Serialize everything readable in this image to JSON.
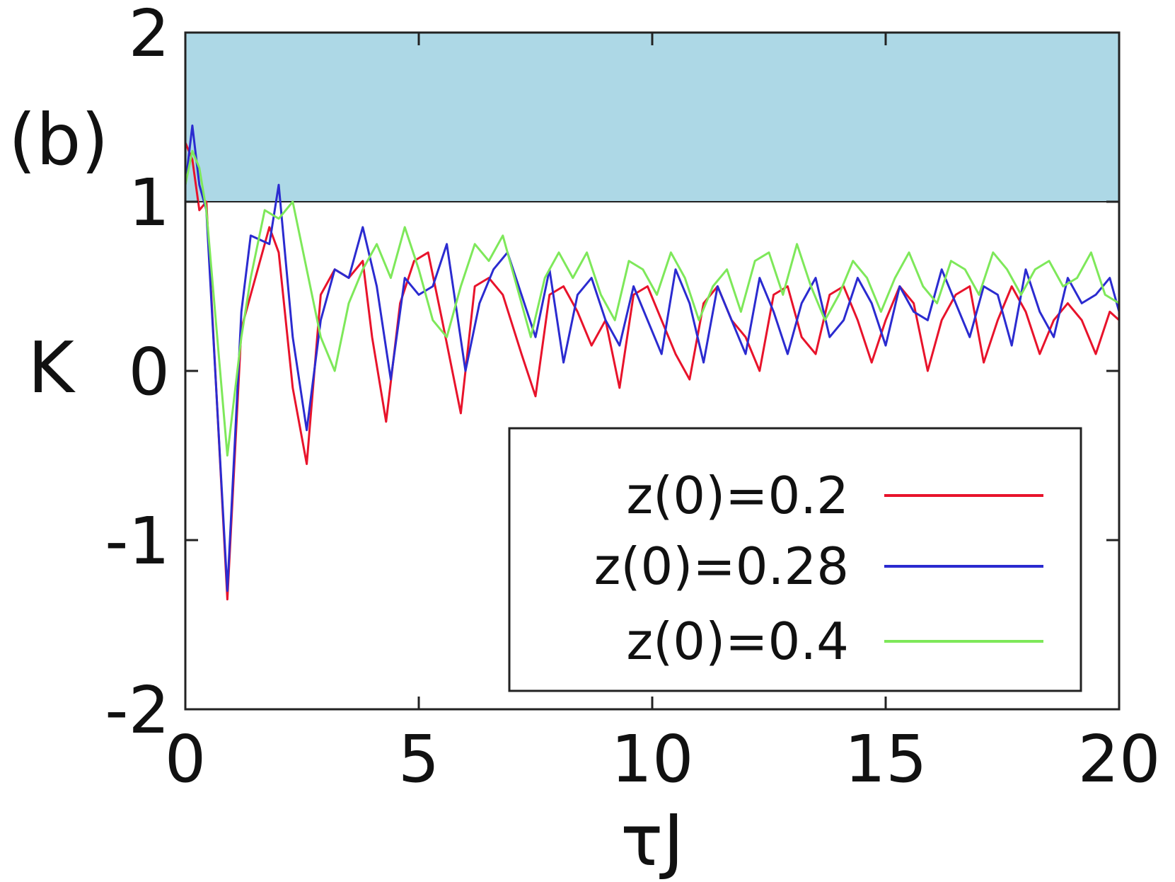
{
  "chart_data": {
    "type": "line",
    "panel_label": "(b)",
    "xlabel": "τJ",
    "ylabel": "K",
    "xlim": [
      0,
      20
    ],
    "ylim": [
      -2,
      2
    ],
    "xticks": [
      0,
      5,
      10,
      15,
      20
    ],
    "yticks": [
      -2,
      -1,
      0,
      1,
      2
    ],
    "xtick_labels": [
      "0",
      "5",
      "10",
      "15",
      "20"
    ],
    "ytick_labels": [
      "-2",
      "-1",
      "0",
      "1",
      "2"
    ],
    "shaded_region": {
      "y_from": 1,
      "y_to": 2,
      "color": "#add8e6"
    },
    "legend_position": "bottom-right",
    "grid": false,
    "series": [
      {
        "name": "z(0)=0.2",
        "color": "#e8132b",
        "x": [
          0,
          0.15,
          0.3,
          0.45,
          0.9,
          1.2,
          1.4,
          1.8,
          2.0,
          2.3,
          2.6,
          2.9,
          3.2,
          3.5,
          3.8,
          4.0,
          4.3,
          4.6,
          4.9,
          5.2,
          5.5,
          5.9,
          6.2,
          6.5,
          6.8,
          7.2,
          7.5,
          7.8,
          8.1,
          8.4,
          8.7,
          9.0,
          9.3,
          9.6,
          9.9,
          10.2,
          10.5,
          10.8,
          11.1,
          11.4,
          11.7,
          12.0,
          12.3,
          12.6,
          12.9,
          13.2,
          13.5,
          13.8,
          14.1,
          14.4,
          14.7,
          15.0,
          15.3,
          15.6,
          15.9,
          16.2,
          16.5,
          16.8,
          17.1,
          17.4,
          17.7,
          18.0,
          18.3,
          18.6,
          18.9,
          19.2,
          19.5,
          19.8,
          20
        ],
        "y": [
          1.35,
          1.25,
          0.95,
          1.0,
          -1.35,
          0.25,
          0.45,
          0.85,
          0.7,
          -0.1,
          -0.55,
          0.45,
          0.6,
          0.55,
          0.65,
          0.2,
          -0.3,
          0.4,
          0.65,
          0.7,
          0.3,
          -0.25,
          0.5,
          0.55,
          0.45,
          0.1,
          -0.15,
          0.45,
          0.5,
          0.35,
          0.15,
          0.3,
          -0.1,
          0.45,
          0.5,
          0.3,
          0.1,
          -0.05,
          0.4,
          0.5,
          0.3,
          0.2,
          0.0,
          0.45,
          0.5,
          0.2,
          0.1,
          0.45,
          0.5,
          0.3,
          0.05,
          0.3,
          0.5,
          0.4,
          0.0,
          0.3,
          0.45,
          0.5,
          0.05,
          0.3,
          0.5,
          0.35,
          0.1,
          0.3,
          0.4,
          0.3,
          0.1,
          0.35,
          0.3
        ]
      },
      {
        "name": "z(0)=0.28",
        "color": "#2b2bd0",
        "x": [
          0,
          0.15,
          0.3,
          0.45,
          0.9,
          1.2,
          1.4,
          1.8,
          2.0,
          2.3,
          2.6,
          2.9,
          3.2,
          3.5,
          3.8,
          4.1,
          4.4,
          4.7,
          5.0,
          5.3,
          5.6,
          6.0,
          6.3,
          6.6,
          6.9,
          7.2,
          7.5,
          7.8,
          8.1,
          8.4,
          8.7,
          9.0,
          9.3,
          9.6,
          9.9,
          10.2,
          10.5,
          10.8,
          11.1,
          11.4,
          11.7,
          12.0,
          12.3,
          12.6,
          12.9,
          13.2,
          13.5,
          13.8,
          14.1,
          14.4,
          14.7,
          15.0,
          15.3,
          15.6,
          15.9,
          16.2,
          16.5,
          16.8,
          17.1,
          17.4,
          17.7,
          18.0,
          18.3,
          18.6,
          18.9,
          19.2,
          19.5,
          19.8,
          20
        ],
        "y": [
          1.1,
          1.45,
          1.1,
          0.95,
          -1.3,
          0.35,
          0.8,
          0.75,
          1.1,
          0.2,
          -0.35,
          0.3,
          0.6,
          0.55,
          0.85,
          0.5,
          -0.05,
          0.55,
          0.45,
          0.5,
          0.75,
          0.0,
          0.4,
          0.6,
          0.7,
          0.45,
          0.2,
          0.6,
          0.05,
          0.45,
          0.55,
          0.3,
          0.15,
          0.5,
          0.3,
          0.1,
          0.6,
          0.4,
          0.05,
          0.5,
          0.3,
          0.1,
          0.55,
          0.35,
          0.1,
          0.4,
          0.55,
          0.2,
          0.3,
          0.55,
          0.4,
          0.15,
          0.5,
          0.35,
          0.3,
          0.6,
          0.4,
          0.2,
          0.5,
          0.45,
          0.15,
          0.6,
          0.35,
          0.2,
          0.55,
          0.4,
          0.45,
          0.55,
          0.35
        ]
      },
      {
        "name": "z(0)=0.4",
        "color": "#7ee85a",
        "x": [
          0,
          0.15,
          0.3,
          0.45,
          0.9,
          1.2,
          1.4,
          1.7,
          2.0,
          2.3,
          2.6,
          2.9,
          3.2,
          3.5,
          3.8,
          4.1,
          4.4,
          4.7,
          5.0,
          5.3,
          5.6,
          5.9,
          6.2,
          6.5,
          6.8,
          7.1,
          7.4,
          7.7,
          8.0,
          8.3,
          8.6,
          8.9,
          9.2,
          9.5,
          9.8,
          10.1,
          10.4,
          10.7,
          11.0,
          11.3,
          11.6,
          11.9,
          12.2,
          12.5,
          12.8,
          13.1,
          13.4,
          13.7,
          14.0,
          14.3,
          14.6,
          14.9,
          15.2,
          15.5,
          15.8,
          16.1,
          16.4,
          16.7,
          17.0,
          17.3,
          17.6,
          17.9,
          18.2,
          18.5,
          18.8,
          19.1,
          19.4,
          19.7,
          20
        ],
        "y": [
          1.1,
          1.3,
          1.2,
          0.95,
          -0.5,
          0.2,
          0.55,
          0.95,
          0.9,
          1.0,
          0.6,
          0.2,
          0.0,
          0.4,
          0.6,
          0.75,
          0.55,
          0.85,
          0.6,
          0.3,
          0.2,
          0.5,
          0.75,
          0.65,
          0.8,
          0.5,
          0.2,
          0.55,
          0.7,
          0.55,
          0.7,
          0.45,
          0.3,
          0.65,
          0.6,
          0.45,
          0.7,
          0.55,
          0.3,
          0.5,
          0.6,
          0.35,
          0.65,
          0.7,
          0.45,
          0.75,
          0.5,
          0.3,
          0.45,
          0.65,
          0.55,
          0.35,
          0.55,
          0.7,
          0.5,
          0.4,
          0.65,
          0.6,
          0.45,
          0.7,
          0.6,
          0.45,
          0.6,
          0.65,
          0.5,
          0.55,
          0.7,
          0.45,
          0.4
        ]
      }
    ]
  }
}
